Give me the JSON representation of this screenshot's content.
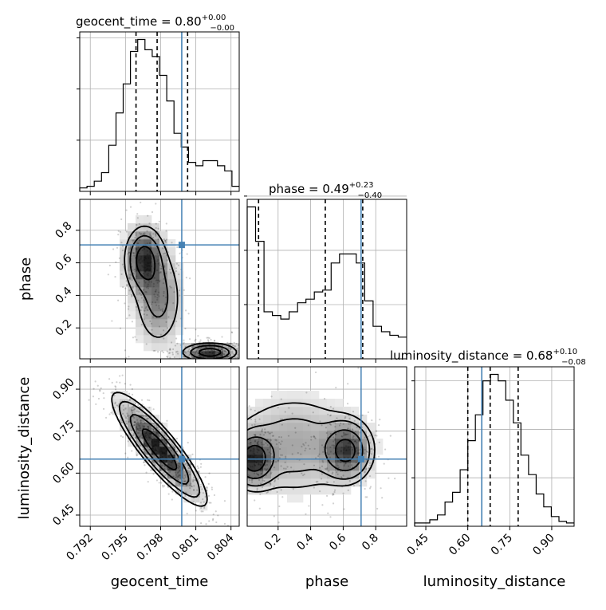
{
  "chart_data": {
    "type": "corner",
    "grid": true,
    "colors": {
      "truth": "#4682b4",
      "hist": "#000000",
      "contour": "#000000",
      "quantile": "#000000"
    },
    "parameters": [
      {
        "name": "geocent_time",
        "label": "geocent_time",
        "title_name": "geocent_time = ",
        "median_text": "0.80",
        "plus_text": "+0.00",
        "minus_text": "−0.00",
        "range": [
          0.7911,
          0.8047
        ],
        "ticks": [
          0.792,
          0.795,
          0.798,
          0.801,
          0.804
        ],
        "tick_labels": [
          "0.792",
          "0.795",
          "0.798",
          "0.801",
          "0.804"
        ],
        "truth": 0.7998,
        "quantiles": [
          0.7959,
          0.7977,
          0.8003
        ],
        "hist": [
          0.02,
          0.03,
          0.06,
          0.11,
          0.27,
          0.46,
          0.63,
          0.82,
          0.89,
          0.83,
          0.79,
          0.68,
          0.53,
          0.34,
          0.26,
          0.17,
          0.15,
          0.18,
          0.18,
          0.15,
          0.12,
          0.03
        ]
      },
      {
        "name": "phase",
        "label": "phase",
        "title_name": "phase = ",
        "median_text": "0.49",
        "plus_text": "+0.23",
        "minus_text": "−0.40",
        "range": [
          0.01,
          0.99
        ],
        "ticks": [
          0.2,
          0.4,
          0.6,
          0.8
        ],
        "tick_labels": [
          "0.2",
          "0.4",
          "0.6",
          "0.8"
        ],
        "truth": 0.71,
        "quantiles": [
          0.08,
          0.49,
          0.72
        ],
        "hist": [
          0.84,
          0.65,
          0.26,
          0.24,
          0.22,
          0.26,
          0.31,
          0.33,
          0.37,
          0.38,
          0.53,
          0.58,
          0.58,
          0.53,
          0.32,
          0.18,
          0.15,
          0.13,
          0.12
        ]
      },
      {
        "name": "luminosity_distance",
        "label": "luminosity_distance",
        "title_name": "luminosity_distance = ",
        "median_text": "0.68",
        "plus_text": "+0.10",
        "minus_text": "−0.08",
        "range": [
          0.41,
          0.98
        ],
        "ticks": [
          0.45,
          0.6,
          0.75,
          0.9
        ],
        "tick_labels": [
          "0.45",
          "0.60",
          "0.75",
          "0.90"
        ],
        "truth": 0.65,
        "quantiles": [
          0.6,
          0.68,
          0.78
        ],
        "hist": [
          0.02,
          0.02,
          0.04,
          0.07,
          0.15,
          0.21,
          0.35,
          0.53,
          0.69,
          0.9,
          0.94,
          0.9,
          0.78,
          0.64,
          0.44,
          0.32,
          0.2,
          0.12,
          0.06,
          0.03,
          0.02
        ]
      }
    ],
    "pairs": [
      {
        "x": "geocent_time",
        "y": "phase",
        "blobs": [
          {
            "cx": 0.7966,
            "cy": 0.62,
            "sx": 0.0009,
            "sy": 0.11,
            "w": 1.0
          },
          {
            "cx": 0.7978,
            "cy": 0.38,
            "sx": 0.0011,
            "sy": 0.16,
            "w": 0.55
          },
          {
            "cx": 0.8022,
            "cy": 0.05,
            "sx": 0.0012,
            "sy": 0.03,
            "w": 1.1
          }
        ],
        "contour_levels": [
          0.75,
          0.4,
          0.17
        ]
      },
      {
        "x": "geocent_time",
        "y": "luminosity_distance",
        "rho": -0.88,
        "center": [
          0.7979,
          0.685
        ],
        "spread": [
          0.0017,
          0.085
        ],
        "contour_levels": [
          0.72,
          0.36,
          0.14,
          0.06
        ]
      },
      {
        "x": "phase",
        "y": "luminosity_distance",
        "blobs": [
          {
            "cx": 0.05,
            "cy": 0.65,
            "sx": 0.07,
            "sy": 0.05,
            "w": 1.0
          },
          {
            "cx": 0.62,
            "cy": 0.68,
            "sx": 0.08,
            "sy": 0.055,
            "w": 0.9
          },
          {
            "cx": 0.3,
            "cy": 0.7,
            "sx": 0.22,
            "sy": 0.1,
            "w": 0.35
          }
        ],
        "contour_levels": [
          0.72,
          0.42,
          0.2,
          0.1
        ]
      }
    ]
  }
}
